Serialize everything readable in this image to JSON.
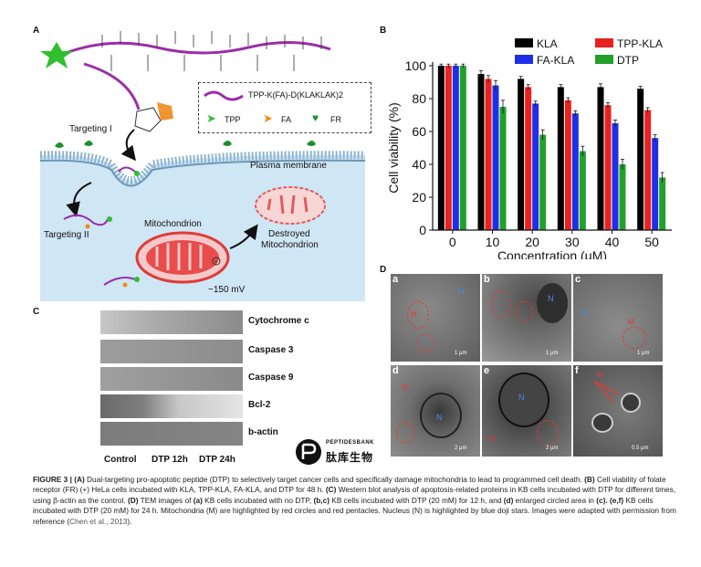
{
  "panels": {
    "a": {
      "letter": "A"
    },
    "b": {
      "letter": "B"
    },
    "c": {
      "letter": "C"
    },
    "d": {
      "letter": "D"
    }
  },
  "panel_a": {
    "legend_title": "TPP-K(FA)-D(KLAKLAK)2",
    "legend_items": [
      "TPP",
      "FA",
      "FR"
    ],
    "targeting1": "Targeting I",
    "targeting2": "Targeting II",
    "plasma_membrane": "Plasma membrane",
    "mitochondrion": "Mitochondrion",
    "destroyed_line1": "Destroyed",
    "destroyed_line2": "Mitochondrion",
    "potential": "~150 mV"
  },
  "chart_data": {
    "type": "bar",
    "categories": [
      "0",
      "10",
      "20",
      "30",
      "40",
      "50"
    ],
    "xlabel": "Concentration (μM)",
    "ylabel": "Cell viability (%)",
    "ylim": [
      0,
      100
    ],
    "yticks": [
      0,
      20,
      40,
      60,
      80,
      100
    ],
    "legend": "top-right",
    "series": [
      {
        "name": "KLA",
        "color": "#000000",
        "values": [
          100,
          95,
          92,
          87,
          87,
          86
        ],
        "errors": [
          1,
          2,
          1.5,
          1.5,
          2,
          1.5
        ]
      },
      {
        "name": "TPP-KLA",
        "color": "#e8221f",
        "values": [
          100,
          92,
          87,
          79,
          76,
          73
        ],
        "errors": [
          1,
          2,
          1.5,
          1.5,
          1.5,
          1.5
        ]
      },
      {
        "name": "FA-KLA",
        "color": "#1f2fe8",
        "values": [
          100,
          88,
          77,
          71,
          65,
          56
        ],
        "errors": [
          1,
          3,
          1.5,
          1.5,
          2,
          2
        ]
      },
      {
        "name": "DTP",
        "color": "#22a02a",
        "values": [
          100,
          75,
          58,
          48,
          40,
          32
        ],
        "errors": [
          1,
          4,
          3,
          3,
          3,
          3
        ]
      }
    ]
  },
  "panel_c": {
    "bands": [
      "Cytochrome c",
      "Caspase 3",
      "Caspase 9",
      "Bcl-2",
      "b-actin"
    ],
    "lanes": [
      "Control",
      "DTP 12h",
      "DTP 24h"
    ]
  },
  "panel_d": {
    "images": [
      {
        "letter": "a",
        "marks": [
          "M",
          "N"
        ],
        "scale": "1 μm"
      },
      {
        "letter": "b",
        "marks": [
          "N"
        ],
        "scale": "1 μm"
      },
      {
        "letter": "c",
        "marks": [
          "N",
          "M"
        ],
        "scale": "1 μm"
      },
      {
        "letter": "d",
        "marks": [
          "M",
          "N"
        ],
        "scale": "2 μm"
      },
      {
        "letter": "e",
        "marks": [
          "N",
          "M"
        ],
        "scale": "2 μm"
      },
      {
        "letter": "f",
        "marks": [
          "M"
        ],
        "scale": "0.5 μm"
      }
    ]
  },
  "logo": {
    "en": "PEPTIDESBANK",
    "cn": "肽库生物"
  },
  "caption": {
    "p1_bold": "FIGURE 3 | (A)",
    "p1": " Dual-targeting pro-apoptotic peptide (DTP) to selectively target cancer cells and specifically damage mitochondria to lead to programmed cell death. ",
    "p2_bold": "(B)",
    "p2": " Cell viability of folate receptor (FR) (+) HeLa cells incubated with KLA, TPP-KLA, FA-KLA, and DTP for 48 h. ",
    "p3_bold": "(C)",
    "p3": " Western blot analysis of apoptosis-related proteins in KB cells incubated with DTP for different times, using β-actin as the control. ",
    "p4_bold": "(D)",
    "p4": " TEM images of ",
    "p5_bold": "(a)",
    "p5": " KB cells incubated with no DTP, ",
    "p6_bold": "(b,c)",
    "p6": " KB cells incubated with DTP (20 mM) for 12 h, and ",
    "p7_bold": "(d)",
    "p7": " enlarged circled area in ",
    "p8_bold": "(c). (e,f)",
    "p8": " KB cells incubated with DTP (20 mM) for 24 h. Mitochondria (M) are highlighted by red circles and red pentacles. Nucleus (N) is highlighted by blue doji stars. Images were adapted with permission from reference (",
    "p9_link": "Chen et al., 2013",
    "p9": ")."
  }
}
